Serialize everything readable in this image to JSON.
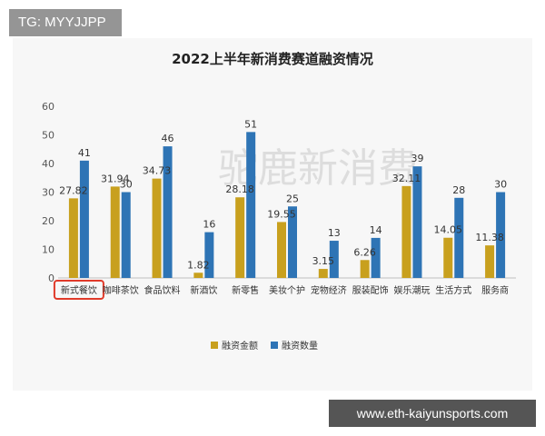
{
  "overlay": {
    "tag": "TG: MYYJJPP",
    "url": "www.eth-kaiyunsports.com"
  },
  "watermark": "驼鹿新消费",
  "colors": {
    "gold": "#c8a01e",
    "blue": "#2e74b5",
    "highlight": "#e03a2a"
  },
  "chart_data": {
    "type": "bar",
    "title": "2022上半年新消费赛道融资情况",
    "categories": [
      "新式餐饮",
      "咖啡茶饮",
      "食品饮料",
      "新酒饮",
      "新零售",
      "美妆个护",
      "宠物经济",
      "服装配饰",
      "娱乐潮玩",
      "生活方式",
      "服务商"
    ],
    "highlighted_category": "新式餐饮",
    "series": [
      {
        "name": "融资金额",
        "values": [
          27.82,
          31.94,
          34.73,
          1.82,
          28.18,
          19.55,
          3.15,
          6.26,
          32.11,
          14.05,
          11.38
        ],
        "labels": [
          "27.82",
          "31.94",
          "34.73",
          "1.82",
          "28.18",
          "19.55",
          "3.15",
          "6.26",
          "32.11",
          "14.05",
          "11.38"
        ]
      },
      {
        "name": "融资数量",
        "values": [
          41,
          30,
          46,
          16,
          51,
          25,
          13,
          14,
          39,
          28,
          30
        ],
        "labels": [
          "41",
          "30",
          "46",
          "16",
          "51",
          "25",
          "13",
          "14",
          "39",
          "28",
          "30"
        ]
      }
    ],
    "ylim": [
      0,
      60
    ],
    "yticks": [
      0,
      10,
      20,
      30,
      40,
      50,
      60
    ],
    "legend": "bottom-center"
  }
}
